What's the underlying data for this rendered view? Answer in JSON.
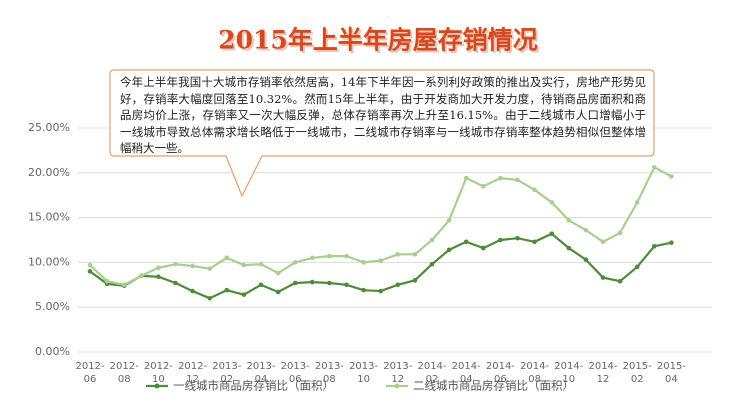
{
  "chart_data": {
    "type": "line",
    "title": "2015年上半年房屋存销情况",
    "annotation": "今年上半年我国十大城市存销率依然居高，14年下半年因一系列利好政策的推出及实行，房地产形势见好，存销率大幅度回落至10.32%。然而15年上半年，由于开发商加大开发力度，待销商品房面积和商品房均价上涨，存销率又一次大幅反弹，总体存销率再次上升至16.15%。由于二线城市人口增幅小于一线城市导致总体需求增长略低于一线城市，二线城市存销率与一线城市存销率整体趋势相似但整体增幅稍大一些。",
    "categories": [
      "2012-06",
      null,
      "2012-08",
      null,
      "2012-10",
      null,
      "2012-12",
      null,
      "2013-02",
      null,
      "2013-04",
      null,
      "2013-06",
      null,
      "2013-08",
      null,
      "2013-10",
      null,
      "2013-12",
      null,
      "2014-02",
      null,
      "2014-04",
      null,
      "2014-06",
      null,
      "2014-08",
      null,
      "2014-10",
      null,
      "2014-12",
      null,
      "2015-02",
      null,
      "2015-04"
    ],
    "series": [
      {
        "name": "一线城市商品房存销比（面积）",
        "color": "#4f8b3b",
        "values": [
          9.0,
          7.6,
          7.4,
          8.5,
          8.4,
          7.7,
          6.8,
          6.0,
          6.9,
          6.4,
          7.5,
          6.7,
          7.7,
          7.8,
          7.7,
          7.5,
          6.9,
          6.8,
          7.5,
          8.0,
          9.8,
          11.4,
          12.3,
          11.6,
          12.5,
          12.7,
          12.3,
          13.2,
          11.6,
          10.3,
          8.3,
          7.9,
          9.5,
          11.8,
          12.2
        ]
      },
      {
        "name": "二线城市商品房存销比（面积）",
        "color": "#a9cf8f",
        "values": [
          9.7,
          7.9,
          7.5,
          8.5,
          9.4,
          9.8,
          9.6,
          9.3,
          10.5,
          9.7,
          9.8,
          8.8,
          10.0,
          10.5,
          10.7,
          10.7,
          10.0,
          10.2,
          10.9,
          10.9,
          12.5,
          14.7,
          19.4,
          18.5,
          19.4,
          19.2,
          18.1,
          16.7,
          14.7,
          13.6,
          12.3,
          13.3,
          16.7,
          20.6,
          19.6
        ]
      }
    ],
    "ylim": [
      0,
      25
    ],
    "yticks": [
      {
        "value": 0,
        "label": "0.00%"
      },
      {
        "value": 5,
        "label": "5.00%"
      },
      {
        "value": 10,
        "label": "10.00%"
      },
      {
        "value": 15,
        "label": "15.00%"
      },
      {
        "value": 20,
        "label": "20.00%"
      },
      {
        "value": 25,
        "label": "25.00%"
      }
    ],
    "grid": true
  }
}
